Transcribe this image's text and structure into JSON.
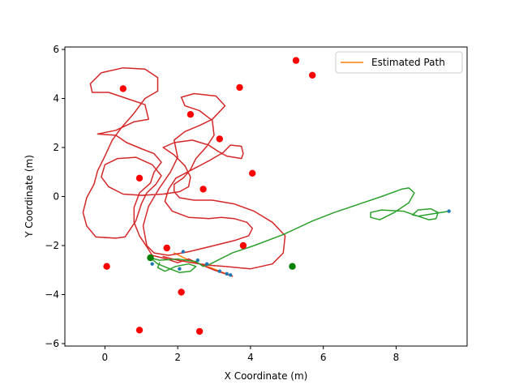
{
  "chart_data": {
    "type": "line",
    "title": "",
    "xlabel": "X Coordinate (m)",
    "ylabel": "Y Coordinate (m)",
    "xlim": [
      -1.1,
      9.95
    ],
    "ylim": [
      -6.1,
      6.1
    ],
    "xticks": [
      0,
      2,
      4,
      6,
      8
    ],
    "yticks": [
      -6,
      -4,
      -2,
      0,
      2,
      4,
      6
    ],
    "grid": false,
    "legend": {
      "placement": "top-right",
      "entries": [
        {
          "label": "Estimated Path",
          "color": "#ff7f0e"
        }
      ]
    },
    "series": [
      {
        "name": "Estimated Path",
        "type": "line",
        "color": "#ff7f0e",
        "points": [
          [
            1.9,
            -2.3
          ],
          [
            2.3,
            -2.6
          ],
          [
            2.9,
            -2.9
          ],
          [
            3.5,
            -3.25
          ]
        ]
      },
      {
        "type": "line",
        "color": "#d62728",
        "points": [
          [
            3.5,
            -3.25
          ],
          [
            3.0,
            -3.0
          ],
          [
            2.6,
            -2.75
          ],
          [
            2.3,
            -2.55
          ],
          [
            2.0,
            -2.7
          ],
          [
            1.7,
            -2.55
          ],
          [
            1.3,
            -2.4
          ],
          [
            1.15,
            -2.05
          ],
          [
            0.95,
            -1.6
          ],
          [
            0.8,
            -1.05
          ],
          [
            0.8,
            -0.45
          ],
          [
            0.95,
            0.15
          ],
          [
            1.25,
            0.55
          ],
          [
            1.35,
            1.0
          ],
          [
            1.55,
            1.4
          ],
          [
            1.35,
            1.75
          ],
          [
            1.0,
            1.95
          ],
          [
            0.6,
            2.2
          ],
          [
            0.3,
            2.5
          ],
          [
            -0.2,
            2.55
          ],
          [
            0.3,
            2.7
          ],
          [
            0.8,
            3.05
          ],
          [
            1.2,
            3.15
          ],
          [
            1.1,
            3.75
          ],
          [
            0.5,
            4.05
          ],
          [
            0.1,
            4.25
          ],
          [
            -0.35,
            4.25
          ],
          [
            -0.4,
            4.6
          ],
          [
            -0.1,
            5.05
          ],
          [
            0.5,
            5.25
          ],
          [
            1.1,
            5.2
          ],
          [
            1.45,
            4.85
          ],
          [
            1.45,
            4.3
          ],
          [
            1.1,
            4.0
          ],
          [
            0.8,
            3.4
          ],
          [
            0.45,
            2.8
          ],
          [
            0.2,
            2.3
          ],
          [
            0.0,
            1.65
          ],
          [
            -0.2,
            1.05
          ],
          [
            -0.3,
            0.5
          ],
          [
            -0.5,
            -0.05
          ],
          [
            -0.6,
            -0.65
          ],
          [
            -0.5,
            -1.2
          ],
          [
            -0.25,
            -1.65
          ],
          [
            0.3,
            -1.7
          ],
          [
            0.55,
            -1.65
          ],
          [
            0.85,
            -1.0
          ],
          [
            1.0,
            -0.3
          ],
          [
            1.15,
            0.15
          ],
          [
            1.4,
            0.5
          ],
          [
            1.55,
            0.85
          ],
          [
            1.3,
            1.3
          ],
          [
            0.85,
            1.6
          ],
          [
            0.35,
            1.55
          ],
          [
            0.0,
            1.3
          ],
          [
            -0.1,
            0.8
          ],
          [
            0.1,
            0.4
          ],
          [
            0.5,
            0.1
          ],
          [
            1.0,
            0.05
          ],
          [
            1.6,
            0.1
          ],
          [
            2.05,
            0.2
          ],
          [
            2.3,
            0.4
          ],
          [
            2.35,
            0.8
          ],
          [
            2.2,
            1.25
          ],
          [
            1.9,
            1.7
          ],
          [
            1.6,
            2.0
          ],
          [
            1.9,
            2.2
          ],
          [
            2.4,
            2.3
          ],
          [
            2.85,
            2.1
          ],
          [
            3.1,
            1.85
          ],
          [
            3.35,
            1.65
          ],
          [
            3.75,
            1.55
          ],
          [
            3.8,
            1.75
          ],
          [
            3.75,
            2.05
          ],
          [
            3.45,
            2.1
          ],
          [
            3.25,
            1.8
          ],
          [
            2.85,
            1.45
          ],
          [
            2.4,
            1.1
          ],
          [
            1.95,
            0.75
          ],
          [
            1.75,
            0.3
          ],
          [
            1.65,
            -0.2
          ],
          [
            1.85,
            -0.6
          ],
          [
            2.3,
            -0.85
          ],
          [
            2.85,
            -0.9
          ],
          [
            3.2,
            -0.85
          ],
          [
            3.55,
            -0.9
          ],
          [
            3.9,
            -1.05
          ],
          [
            4.05,
            -1.3
          ],
          [
            3.95,
            -1.6
          ],
          [
            3.55,
            -1.8
          ],
          [
            3.0,
            -2.0
          ],
          [
            2.3,
            -2.25
          ],
          [
            1.75,
            -2.4
          ],
          [
            1.35,
            -2.3
          ],
          [
            1.15,
            -2.0
          ],
          [
            1.05,
            -1.2
          ],
          [
            1.2,
            -0.4
          ],
          [
            1.5,
            0.35
          ],
          [
            1.8,
            1.0
          ],
          [
            2.0,
            1.6
          ],
          [
            1.9,
            2.3
          ],
          [
            2.2,
            2.65
          ],
          [
            2.6,
            2.9
          ],
          [
            2.95,
            3.15
          ],
          [
            3.3,
            3.7
          ],
          [
            3.05,
            4.1
          ],
          [
            2.45,
            4.2
          ],
          [
            2.1,
            4.05
          ],
          [
            2.2,
            3.7
          ],
          [
            2.6,
            3.5
          ],
          [
            2.95,
            3.1
          ],
          [
            3.0,
            2.5
          ],
          [
            2.8,
            2.05
          ],
          [
            2.5,
            1.55
          ],
          [
            2.35,
            1.1
          ],
          [
            2.15,
            0.75
          ],
          [
            1.9,
            0.5
          ],
          [
            1.9,
            0.2
          ],
          [
            2.05,
            -0.05
          ],
          [
            2.45,
            -0.15
          ],
          [
            2.95,
            -0.15
          ],
          [
            3.55,
            -0.3
          ],
          [
            4.1,
            -0.6
          ],
          [
            4.6,
            -1.05
          ],
          [
            4.95,
            -1.6
          ],
          [
            4.9,
            -2.3
          ],
          [
            4.6,
            -2.75
          ],
          [
            4.0,
            -2.95
          ],
          [
            3.3,
            -2.85
          ],
          [
            2.85,
            -2.8
          ],
          [
            2.4,
            -2.7
          ],
          [
            2.0,
            -2.6
          ],
          [
            1.6,
            -2.45
          ]
        ]
      },
      {
        "type": "line",
        "color": "#2ca02c",
        "points": [
          [
            1.25,
            -2.5
          ],
          [
            1.5,
            -2.6
          ],
          [
            2.0,
            -2.55
          ],
          [
            2.5,
            -2.65
          ],
          [
            2.7,
            -2.85
          ],
          [
            2.9,
            -2.75
          ],
          [
            3.5,
            -2.3
          ],
          [
            4.1,
            -2.0
          ],
          [
            4.9,
            -1.55
          ],
          [
            5.7,
            -1.0
          ],
          [
            6.3,
            -0.65
          ],
          [
            7.0,
            -0.3
          ],
          [
            7.6,
            0.0
          ],
          [
            8.15,
            0.3
          ],
          [
            8.35,
            0.35
          ],
          [
            8.5,
            0.15
          ],
          [
            8.35,
            -0.25
          ],
          [
            7.95,
            -0.65
          ],
          [
            7.55,
            -0.95
          ],
          [
            7.3,
            -0.85
          ],
          [
            7.3,
            -0.65
          ],
          [
            7.6,
            -0.55
          ],
          [
            8.2,
            -0.6
          ],
          [
            8.6,
            -0.8
          ],
          [
            8.9,
            -0.95
          ],
          [
            9.1,
            -0.9
          ],
          [
            9.15,
            -0.65
          ],
          [
            8.95,
            -0.5
          ],
          [
            8.6,
            -0.55
          ],
          [
            8.45,
            -0.75
          ],
          [
            8.6,
            -0.8
          ],
          [
            9.45,
            -0.6
          ]
        ]
      },
      {
        "type": "line",
        "color": "#2ca02c",
        "points": [
          [
            1.25,
            -2.5
          ],
          [
            1.45,
            -2.75
          ],
          [
            1.7,
            -2.9
          ],
          [
            2.05,
            -3.1
          ],
          [
            2.35,
            -3.05
          ],
          [
            2.5,
            -2.85
          ],
          [
            2.3,
            -2.75
          ],
          [
            1.95,
            -2.85
          ],
          [
            1.65,
            -3.05
          ],
          [
            1.45,
            -2.9
          ],
          [
            1.5,
            -2.7
          ]
        ]
      },
      {
        "type": "scatter",
        "color": "#ff0000",
        "points": [
          [
            0.5,
            4.4
          ],
          [
            5.25,
            5.55
          ],
          [
            5.7,
            4.95
          ],
          [
            3.7,
            4.45
          ],
          [
            2.35,
            3.35
          ],
          [
            3.15,
            2.35
          ],
          [
            4.05,
            0.95
          ],
          [
            0.95,
            0.75
          ],
          [
            2.7,
            0.3
          ],
          [
            1.7,
            -2.1
          ],
          [
            3.8,
            -2.0
          ],
          [
            0.05,
            -2.85
          ],
          [
            2.1,
            -3.9
          ],
          [
            0.95,
            -5.45
          ],
          [
            2.6,
            -5.5
          ]
        ]
      },
      {
        "type": "scatter",
        "color": "#008000",
        "points": [
          [
            1.25,
            -2.5
          ],
          [
            5.15,
            -2.85
          ]
        ]
      },
      {
        "type": "scatter",
        "color": "#1f77b4",
        "points": [
          [
            2.15,
            -2.25
          ],
          [
            1.3,
            -2.75
          ],
          [
            2.55,
            -2.6
          ],
          [
            2.8,
            -2.75
          ],
          [
            2.05,
            -2.95
          ],
          [
            3.15,
            -3.05
          ],
          [
            3.35,
            -3.15
          ],
          [
            3.45,
            -3.2
          ],
          [
            9.45,
            -0.6
          ]
        ]
      }
    ]
  }
}
